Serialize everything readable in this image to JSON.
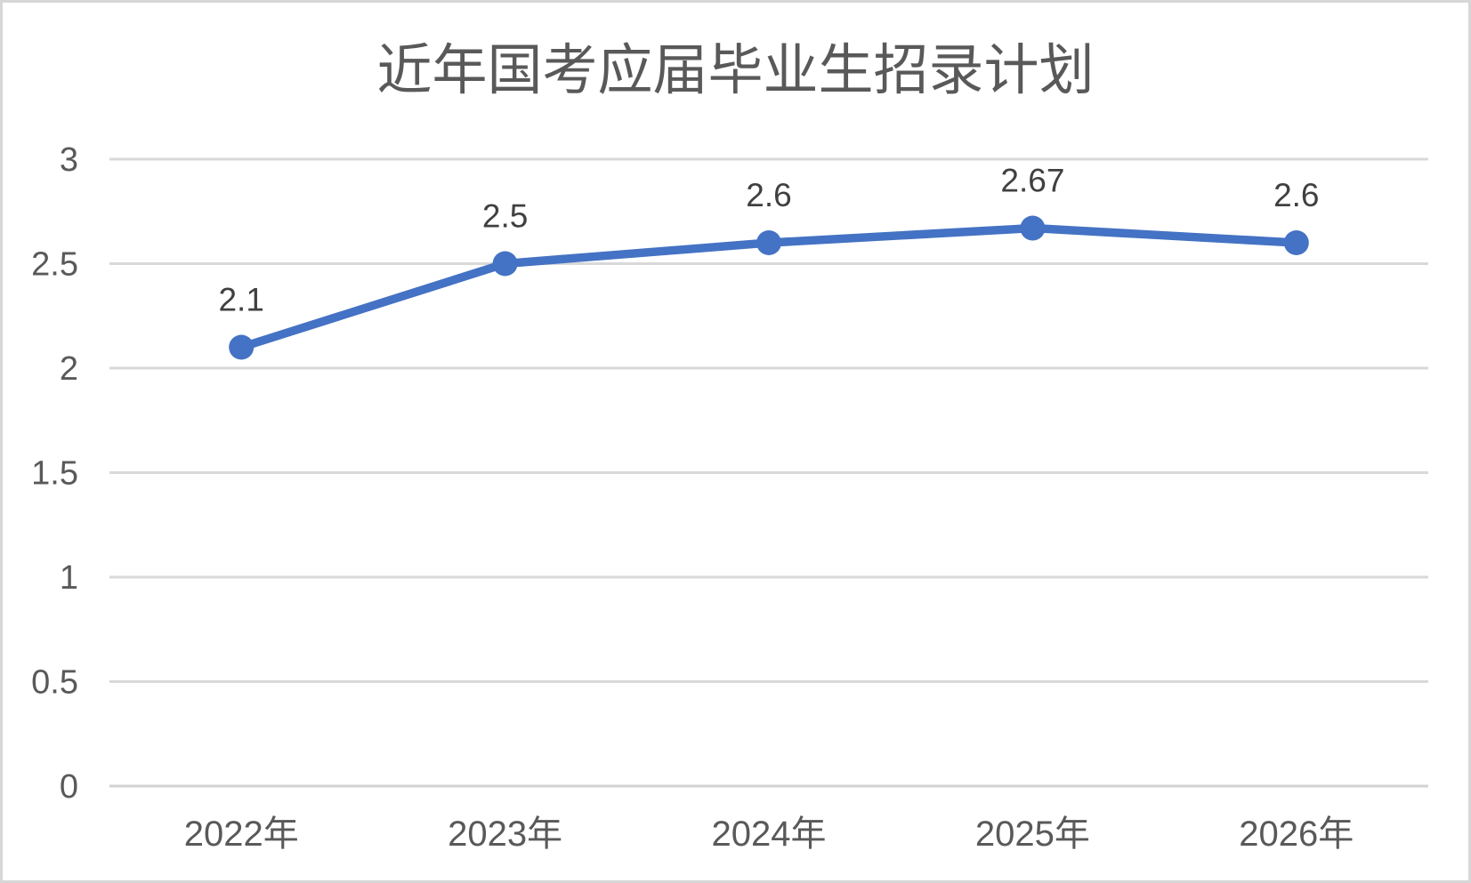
{
  "chart_data": {
    "type": "line",
    "title": "近年国考应届毕业生招录计划",
    "categories": [
      "2022年",
      "2023年",
      "2024年",
      "2025年",
      "2026年"
    ],
    "values": [
      2.1,
      2.5,
      2.6,
      2.67,
      2.6
    ],
    "data_labels": [
      "2.1",
      "2.5",
      "2.6",
      "2.67",
      "2.6"
    ],
    "xlabel": "",
    "ylabel": "",
    "ylim": [
      0,
      3
    ],
    "ytick_step": 0.5,
    "yticks": [
      "0",
      "0.5",
      "1",
      "1.5",
      "2",
      "2.5",
      "3"
    ],
    "grid": true,
    "legend": "none",
    "colors": {
      "line": "#4472C4",
      "marker": "#4472C4",
      "gridline": "#d9d9d9",
      "axis_text": "#595959",
      "data_label_text": "#404040",
      "title_text": "#595959",
      "frame_border": "#d7d7d7",
      "background": "#ffffff"
    }
  }
}
